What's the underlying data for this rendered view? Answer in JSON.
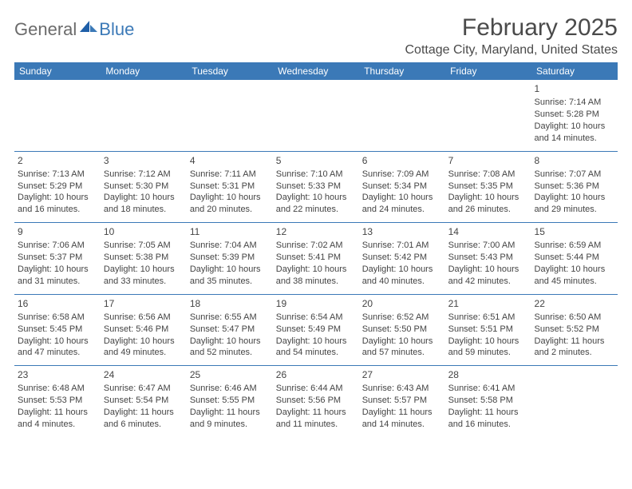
{
  "logo": {
    "part1": "General",
    "part2": "Blue"
  },
  "title": "February 2025",
  "location": "Cottage City, Maryland, United States",
  "colors": {
    "header_bg": "#3b79b7",
    "header_text": "#ffffff",
    "border": "#3b79b7",
    "body_text": "#444444",
    "logo_gray": "#6b6b6b",
    "logo_blue": "#3b79b7",
    "background": "#ffffff"
  },
  "day_headers": [
    "Sunday",
    "Monday",
    "Tuesday",
    "Wednesday",
    "Thursday",
    "Friday",
    "Saturday"
  ],
  "weeks": [
    [
      null,
      null,
      null,
      null,
      null,
      null,
      {
        "n": "1",
        "sr": "7:14 AM",
        "ss": "5:28 PM",
        "dl": "10 hours and 14 minutes."
      }
    ],
    [
      {
        "n": "2",
        "sr": "7:13 AM",
        "ss": "5:29 PM",
        "dl": "10 hours and 16 minutes."
      },
      {
        "n": "3",
        "sr": "7:12 AM",
        "ss": "5:30 PM",
        "dl": "10 hours and 18 minutes."
      },
      {
        "n": "4",
        "sr": "7:11 AM",
        "ss": "5:31 PM",
        "dl": "10 hours and 20 minutes."
      },
      {
        "n": "5",
        "sr": "7:10 AM",
        "ss": "5:33 PM",
        "dl": "10 hours and 22 minutes."
      },
      {
        "n": "6",
        "sr": "7:09 AM",
        "ss": "5:34 PM",
        "dl": "10 hours and 24 minutes."
      },
      {
        "n": "7",
        "sr": "7:08 AM",
        "ss": "5:35 PM",
        "dl": "10 hours and 26 minutes."
      },
      {
        "n": "8",
        "sr": "7:07 AM",
        "ss": "5:36 PM",
        "dl": "10 hours and 29 minutes."
      }
    ],
    [
      {
        "n": "9",
        "sr": "7:06 AM",
        "ss": "5:37 PM",
        "dl": "10 hours and 31 minutes."
      },
      {
        "n": "10",
        "sr": "7:05 AM",
        "ss": "5:38 PM",
        "dl": "10 hours and 33 minutes."
      },
      {
        "n": "11",
        "sr": "7:04 AM",
        "ss": "5:39 PM",
        "dl": "10 hours and 35 minutes."
      },
      {
        "n": "12",
        "sr": "7:02 AM",
        "ss": "5:41 PM",
        "dl": "10 hours and 38 minutes."
      },
      {
        "n": "13",
        "sr": "7:01 AM",
        "ss": "5:42 PM",
        "dl": "10 hours and 40 minutes."
      },
      {
        "n": "14",
        "sr": "7:00 AM",
        "ss": "5:43 PM",
        "dl": "10 hours and 42 minutes."
      },
      {
        "n": "15",
        "sr": "6:59 AM",
        "ss": "5:44 PM",
        "dl": "10 hours and 45 minutes."
      }
    ],
    [
      {
        "n": "16",
        "sr": "6:58 AM",
        "ss": "5:45 PM",
        "dl": "10 hours and 47 minutes."
      },
      {
        "n": "17",
        "sr": "6:56 AM",
        "ss": "5:46 PM",
        "dl": "10 hours and 49 minutes."
      },
      {
        "n": "18",
        "sr": "6:55 AM",
        "ss": "5:47 PM",
        "dl": "10 hours and 52 minutes."
      },
      {
        "n": "19",
        "sr": "6:54 AM",
        "ss": "5:49 PM",
        "dl": "10 hours and 54 minutes."
      },
      {
        "n": "20",
        "sr": "6:52 AM",
        "ss": "5:50 PM",
        "dl": "10 hours and 57 minutes."
      },
      {
        "n": "21",
        "sr": "6:51 AM",
        "ss": "5:51 PM",
        "dl": "10 hours and 59 minutes."
      },
      {
        "n": "22",
        "sr": "6:50 AM",
        "ss": "5:52 PM",
        "dl": "11 hours and 2 minutes."
      }
    ],
    [
      {
        "n": "23",
        "sr": "6:48 AM",
        "ss": "5:53 PM",
        "dl": "11 hours and 4 minutes."
      },
      {
        "n": "24",
        "sr": "6:47 AM",
        "ss": "5:54 PM",
        "dl": "11 hours and 6 minutes."
      },
      {
        "n": "25",
        "sr": "6:46 AM",
        "ss": "5:55 PM",
        "dl": "11 hours and 9 minutes."
      },
      {
        "n": "26",
        "sr": "6:44 AM",
        "ss": "5:56 PM",
        "dl": "11 hours and 11 minutes."
      },
      {
        "n": "27",
        "sr": "6:43 AM",
        "ss": "5:57 PM",
        "dl": "11 hours and 14 minutes."
      },
      {
        "n": "28",
        "sr": "6:41 AM",
        "ss": "5:58 PM",
        "dl": "11 hours and 16 minutes."
      },
      null
    ]
  ],
  "labels": {
    "sunrise": "Sunrise: ",
    "sunset": "Sunset: ",
    "daylight": "Daylight: "
  }
}
